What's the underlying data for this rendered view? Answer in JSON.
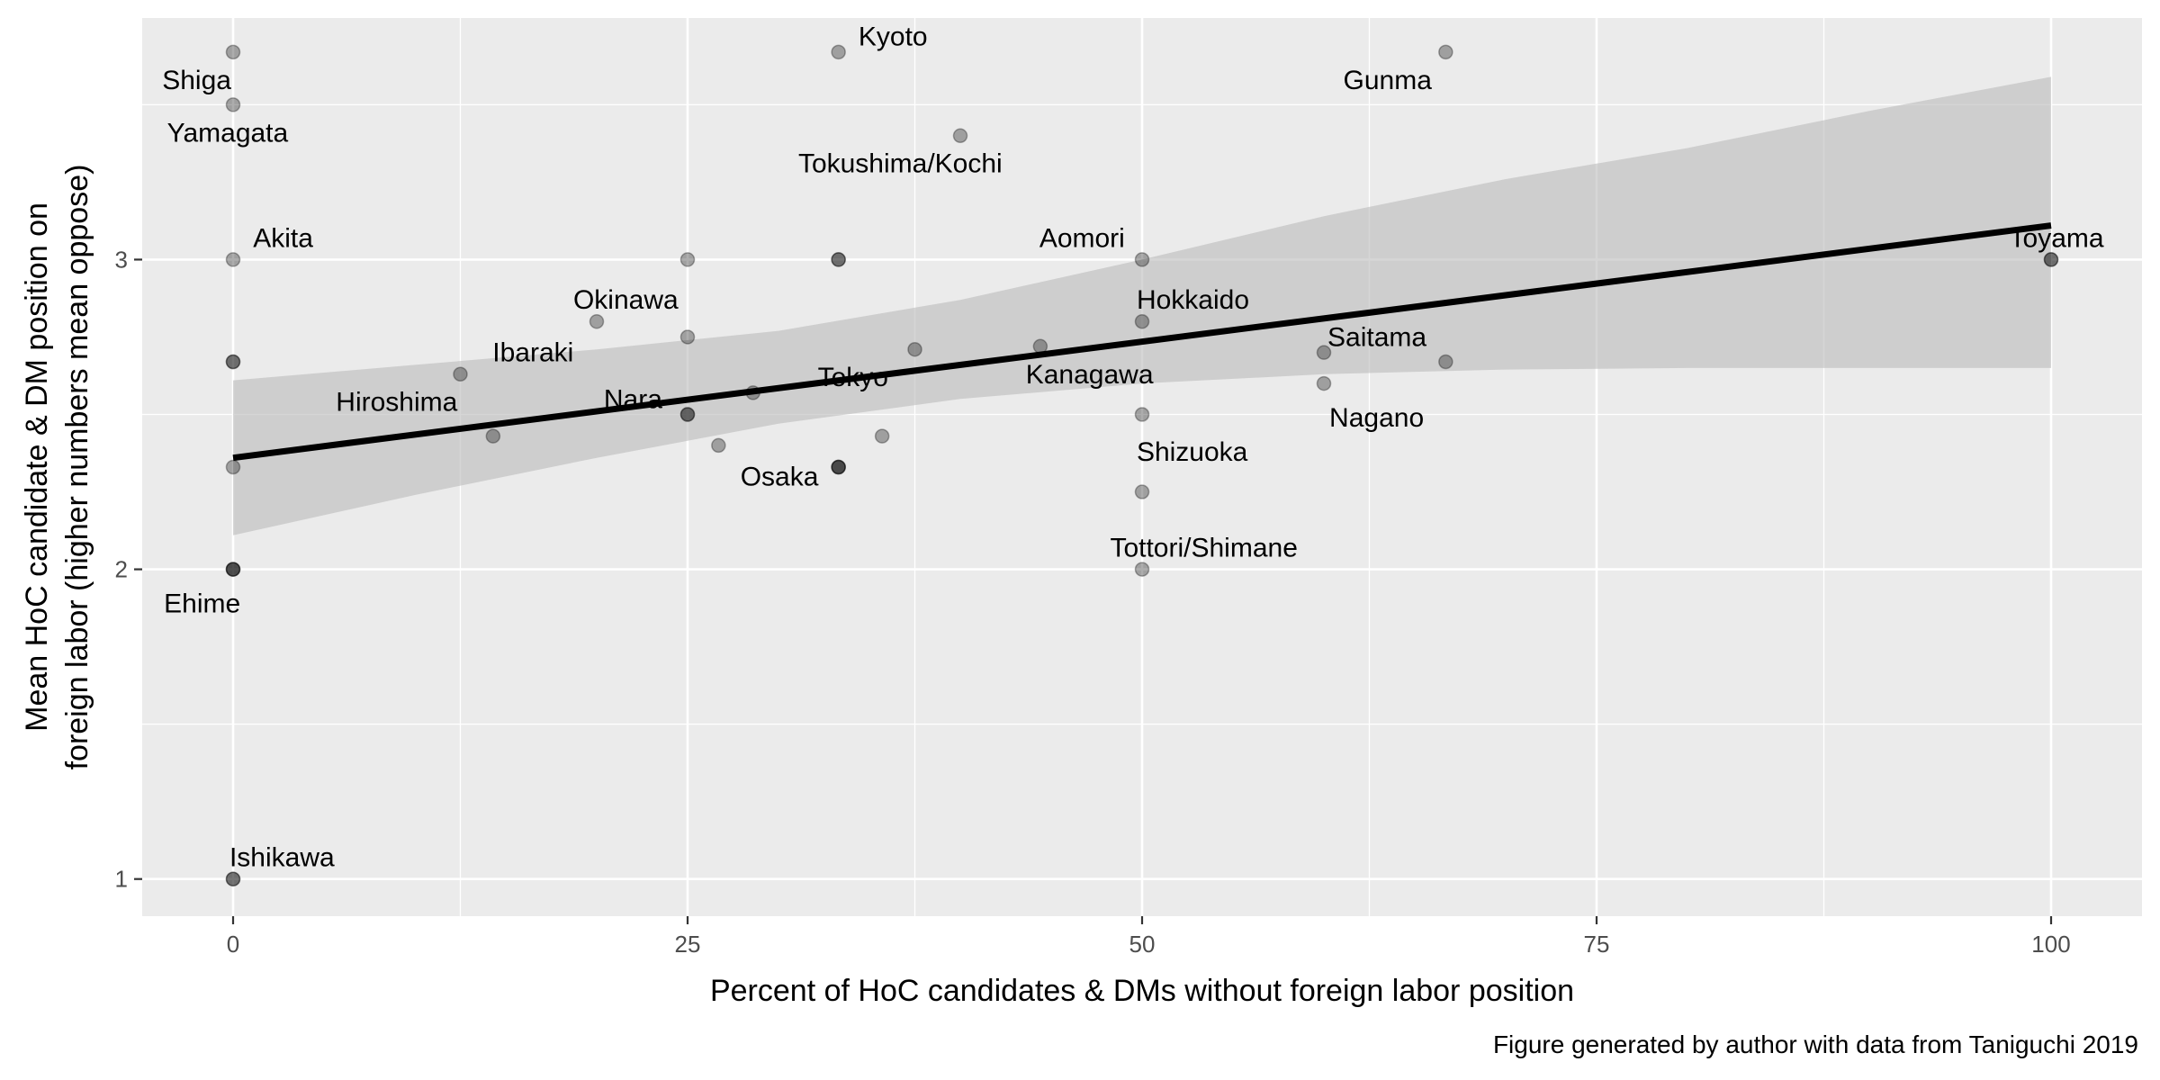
{
  "chart_data": {
    "type": "scatter",
    "title": "",
    "xlabel": "Percent of HoC candidates & DMs without foreign labor position",
    "ylabel_lines": [
      "Mean HoC candidate & DM position on",
      "foreign labor (higher numbers mean oppose)"
    ],
    "caption": "Figure generated by author with data from Taniguchi 2019",
    "xlim": [
      -5,
      105
    ],
    "ylim": [
      0.88,
      3.78
    ],
    "x_ticks": [
      0,
      25,
      50,
      75,
      100
    ],
    "y_ticks": [
      1,
      2,
      3
    ],
    "grid": true,
    "legend": "none",
    "colors": {
      "panel": "#ebebeb",
      "grid_major": "#ffffff",
      "point": "#000000",
      "fit_line": "#000000",
      "ribbon": "#bdbdbd"
    },
    "points": [
      {
        "x": 0,
        "y": 3.67
      },
      {
        "x": 0,
        "y": 3.5
      },
      {
        "x": 0,
        "y": 3.0
      },
      {
        "x": 0,
        "y": 2.67
      },
      {
        "x": 0,
        "y": 2.67
      },
      {
        "x": 0,
        "y": 2.33
      },
      {
        "x": 0,
        "y": 2.0
      },
      {
        "x": 0,
        "y": 2.0
      },
      {
        "x": 0,
        "y": 2.0
      },
      {
        "x": 0,
        "y": 1.0
      },
      {
        "x": 0,
        "y": 1.0
      },
      {
        "x": 12.5,
        "y": 2.63
      },
      {
        "x": 14.3,
        "y": 2.43
      },
      {
        "x": 20,
        "y": 2.8
      },
      {
        "x": 25,
        "y": 3.0
      },
      {
        "x": 25,
        "y": 2.75
      },
      {
        "x": 25,
        "y": 2.5
      },
      {
        "x": 25,
        "y": 2.5
      },
      {
        "x": 26.7,
        "y": 2.4
      },
      {
        "x": 28.6,
        "y": 2.57
      },
      {
        "x": 33.3,
        "y": 3.67
      },
      {
        "x": 33.3,
        "y": 3.0
      },
      {
        "x": 33.3,
        "y": 3.0
      },
      {
        "x": 33.3,
        "y": 2.33
      },
      {
        "x": 33.3,
        "y": 2.33
      },
      {
        "x": 33.3,
        "y": 2.33
      },
      {
        "x": 35.7,
        "y": 2.43
      },
      {
        "x": 37.5,
        "y": 2.71
      },
      {
        "x": 40,
        "y": 3.4
      },
      {
        "x": 44.4,
        "y": 2.72
      },
      {
        "x": 50,
        "y": 3.0
      },
      {
        "x": 50,
        "y": 2.8
      },
      {
        "x": 50,
        "y": 2.5
      },
      {
        "x": 50,
        "y": 2.25
      },
      {
        "x": 50,
        "y": 2.0
      },
      {
        "x": 60,
        "y": 2.7
      },
      {
        "x": 60,
        "y": 2.6
      },
      {
        "x": 66.7,
        "y": 3.67
      },
      {
        "x": 66.7,
        "y": 2.67
      },
      {
        "x": 100,
        "y": 3.0
      },
      {
        "x": 100,
        "y": 3.0
      }
    ],
    "labels": [
      {
        "text": "Kyoto",
        "x": 33.3,
        "y": 3.67,
        "anchor": "start",
        "dx": 1.1,
        "dy": 0.05,
        "color": "#000000"
      },
      {
        "text": "Shiga",
        "x": 0,
        "y": 3.67,
        "anchor": "middle",
        "dx": -2.0,
        "dy": -0.09,
        "color": "#000000"
      },
      {
        "text": "Gunma",
        "x": 66.7,
        "y": 3.67,
        "anchor": "middle",
        "dx": -3.2,
        "dy": -0.09,
        "color": "#000000"
      },
      {
        "text": "Yamagata",
        "x": 0,
        "y": 3.5,
        "anchor": "middle",
        "dx": -0.3,
        "dy": -0.09,
        "color": "#000000"
      },
      {
        "text": "Tokushima/Kochi",
        "x": 40,
        "y": 3.4,
        "anchor": "middle",
        "dx": -3.3,
        "dy": -0.09,
        "color": "#000000"
      },
      {
        "text": "Akita",
        "x": 0,
        "y": 3.0,
        "anchor": "start",
        "dx": 1.1,
        "dy": 0.07,
        "color": "#000000"
      },
      {
        "text": "Aomori",
        "x": 50,
        "y": 3.0,
        "anchor": "middle",
        "dx": -3.3,
        "dy": 0.07,
        "color": "#000000"
      },
      {
        "text": "Toyama",
        "x": 100,
        "y": 3.0,
        "anchor": "middle",
        "dx": 0.3,
        "dy": 0.07,
        "color": "#333333"
      },
      {
        "text": "Okinawa",
        "x": 20,
        "y": 2.8,
        "anchor": "middle",
        "dx": 1.6,
        "dy": 0.07,
        "color": "#000000"
      },
      {
        "text": "Hokkaido",
        "x": 50,
        "y": 2.8,
        "anchor": "start",
        "dx": -0.3,
        "dy": 0.07,
        "color": "#4d4d4d"
      },
      {
        "text": "Ibaraki",
        "x": 12.5,
        "y": 2.63,
        "anchor": "middle",
        "dx": 4.0,
        "dy": 0.07,
        "color": "#000000"
      },
      {
        "text": "Saitama",
        "x": 60,
        "y": 2.7,
        "anchor": "start",
        "dx": 0.2,
        "dy": 0.05,
        "color": "#4d4d4d"
      },
      {
        "text": "Kanagawa",
        "x": 44.4,
        "y": 2.72,
        "anchor": "start",
        "dx": -0.8,
        "dy": -0.09,
        "color": "#333333"
      },
      {
        "text": "Tokyo",
        "x": 37.5,
        "y": 2.71,
        "anchor": "middle",
        "dx": -3.4,
        "dy": -0.09,
        "color": "#333333"
      },
      {
        "text": "Hiroshima",
        "x": 14.3,
        "y": 2.43,
        "anchor": "middle",
        "dx": -5.3,
        "dy": 0.11,
        "color": "#4d4d4d"
      },
      {
        "text": "Nara",
        "x": 25,
        "y": 2.5,
        "anchor": "middle",
        "dx": -3.0,
        "dy": 0.05,
        "color": "#4d4d4d"
      },
      {
        "text": "Nagano",
        "x": 60,
        "y": 2.6,
        "anchor": "start",
        "dx": 0.3,
        "dy": -0.11,
        "color": "#000000"
      },
      {
        "text": "Shizuoka",
        "x": 50,
        "y": 2.5,
        "anchor": "start",
        "dx": -0.3,
        "dy": -0.12,
        "color": "#000000"
      },
      {
        "text": "Osaka",
        "x": 33.3,
        "y": 2.33,
        "anchor": "end",
        "dx": -1.1,
        "dy": -0.03,
        "color": "#000000"
      },
      {
        "text": "Tottori/Shimane",
        "x": 50,
        "y": 2.0,
        "anchor": "middle",
        "dx": 3.4,
        "dy": 0.07,
        "color": "#000000"
      },
      {
        "text": "Ehime",
        "x": 0,
        "y": 2.0,
        "anchor": "middle",
        "dx": -1.7,
        "dy": -0.11,
        "color": "#000000"
      },
      {
        "text": "Ishikawa",
        "x": 0,
        "y": 1.0,
        "anchor": "start",
        "dx": -0.2,
        "dy": 0.07,
        "color": "#000000"
      }
    ],
    "fit": {
      "method": "linear",
      "intercept": 2.36,
      "slope": 0.0075
    },
    "ribbon": [
      {
        "x": 0,
        "lower": 2.11,
        "upper": 2.61
      },
      {
        "x": 10,
        "lower": 2.24,
        "upper": 2.66
      },
      {
        "x": 20,
        "lower": 2.36,
        "upper": 2.71
      },
      {
        "x": 30,
        "lower": 2.47,
        "upper": 2.77
      },
      {
        "x": 40,
        "lower": 2.55,
        "upper": 2.87
      },
      {
        "x": 50,
        "lower": 2.6,
        "upper": 3.0
      },
      {
        "x": 60,
        "lower": 2.63,
        "upper": 3.14
      },
      {
        "x": 70,
        "lower": 2.645,
        "upper": 3.26
      },
      {
        "x": 80,
        "lower": 2.65,
        "upper": 3.36
      },
      {
        "x": 90,
        "lower": 2.65,
        "upper": 3.48
      },
      {
        "x": 100,
        "lower": 2.65,
        "upper": 3.59
      }
    ]
  }
}
